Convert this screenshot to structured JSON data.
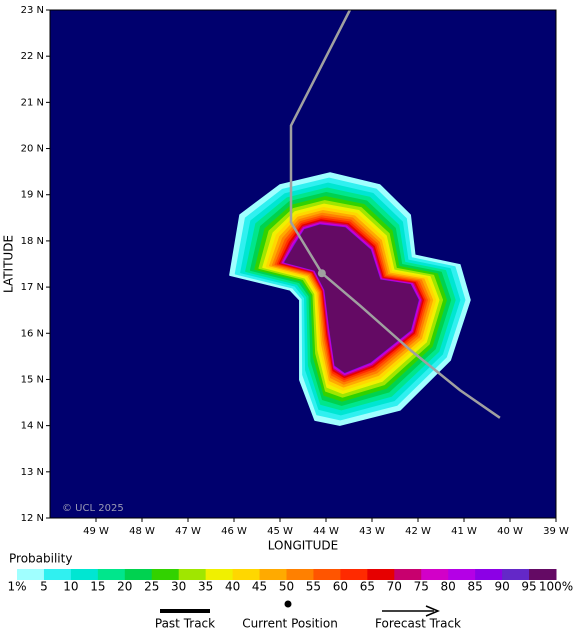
{
  "chart_data": {
    "type": "probability-map",
    "x_label": "LONGITUDE",
    "y_label": "LATITUDE",
    "xlim": [
      -50,
      -39
    ],
    "ylim": [
      12,
      23
    ],
    "xticks": [
      {
        "value": -49,
        "label": "49 W"
      },
      {
        "value": -48,
        "label": "48 W"
      },
      {
        "value": -47,
        "label": "47 W"
      },
      {
        "value": -46,
        "label": "46 W"
      },
      {
        "value": -45,
        "label": "45 W"
      },
      {
        "value": -44,
        "label": "44 W"
      },
      {
        "value": -43,
        "label": "43 W"
      },
      {
        "value": -42,
        "label": "42 W"
      },
      {
        "value": -41,
        "label": "41 W"
      },
      {
        "value": -40,
        "label": "40 W"
      },
      {
        "value": -39,
        "label": "39 W"
      }
    ],
    "yticks": [
      {
        "value": 12,
        "label": "12 N"
      },
      {
        "value": 13,
        "label": "13 N"
      },
      {
        "value": 14,
        "label": "14 N"
      },
      {
        "value": 15,
        "label": "15 N"
      },
      {
        "value": 16,
        "label": "16 N"
      },
      {
        "value": 17,
        "label": "17 N"
      },
      {
        "value": 18,
        "label": "18 N"
      },
      {
        "value": 19,
        "label": "19 N"
      },
      {
        "value": 20,
        "label": "20 N"
      },
      {
        "value": 21,
        "label": "21 N"
      },
      {
        "value": 22,
        "label": "22 N"
      },
      {
        "value": 23,
        "label": "23 N"
      }
    ],
    "background_color": "#00006e",
    "copyright": "© UCL 2025",
    "colorbar_title": "Probability",
    "probability_levels": [
      {
        "value": 1,
        "label": "1%"
      },
      5,
      10,
      15,
      20,
      25,
      30,
      35,
      40,
      45,
      50,
      55,
      60,
      65,
      70,
      75,
      80,
      85,
      90,
      95,
      {
        "value": 100,
        "label": "100%"
      }
    ],
    "level_colors": [
      "#a0ffff",
      "#30f0f0",
      "#00e6d2",
      "#00e68c",
      "#00d250",
      "#32d200",
      "#a0e600",
      "#f0f000",
      "#ffd700",
      "#ffaa00",
      "#ff8000",
      "#ff5500",
      "#ff2a00",
      "#e60000",
      "#c8006e",
      "#d200c8",
      "#b400e6",
      "#8c00e6",
      "#6428c8",
      "#640a64"
    ],
    "swath_outer": [
      [
        -43.91,
        19.47
      ],
      [
        -42.83,
        19.21
      ],
      [
        -42.17,
        18.56
      ],
      [
        -42.07,
        17.69
      ],
      [
        -41.09,
        17.48
      ],
      [
        -40.87,
        16.72
      ],
      [
        -41.3,
        15.42
      ],
      [
        -42.39,
        14.34
      ],
      [
        -43.7,
        14.01
      ],
      [
        -44.24,
        14.12
      ],
      [
        -44.57,
        14.99
      ],
      [
        -44.57,
        16.72
      ],
      [
        -44.78,
        16.94
      ],
      [
        -46.09,
        17.26
      ],
      [
        -45.87,
        18.56
      ],
      [
        -45.0,
        19.21
      ]
    ],
    "swath_inner": [
      [
        -44.13,
        18.34
      ],
      [
        -43.59,
        18.28
      ],
      [
        -43.04,
        17.8
      ],
      [
        -42.83,
        17.15
      ],
      [
        -42.17,
        17.05
      ],
      [
        -42.0,
        16.72
      ],
      [
        -42.17,
        16.07
      ],
      [
        -43.04,
        15.38
      ],
      [
        -43.59,
        15.16
      ],
      [
        -43.8,
        15.31
      ],
      [
        -43.91,
        16.07
      ],
      [
        -44.02,
        16.94
      ],
      [
        -44.24,
        17.37
      ],
      [
        -44.89,
        17.54
      ],
      [
        -44.67,
        17.91
      ],
      [
        -44.46,
        18.24
      ]
    ],
    "track": {
      "lon": [
        -43.48,
        -44.76,
        -44.76,
        -44.09,
        -43.26,
        -42.17,
        -41.09,
        -40.22
      ],
      "lat": [
        23,
        20.5,
        18.4,
        17.3,
        16.6,
        15.64,
        14.77,
        14.17
      ],
      "color": "#a0a0a0"
    },
    "current_position": {
      "lon": -44.09,
      "lat": 17.3
    },
    "legend": [
      "Past Track",
      "Current Position",
      "Forecast Track"
    ]
  }
}
